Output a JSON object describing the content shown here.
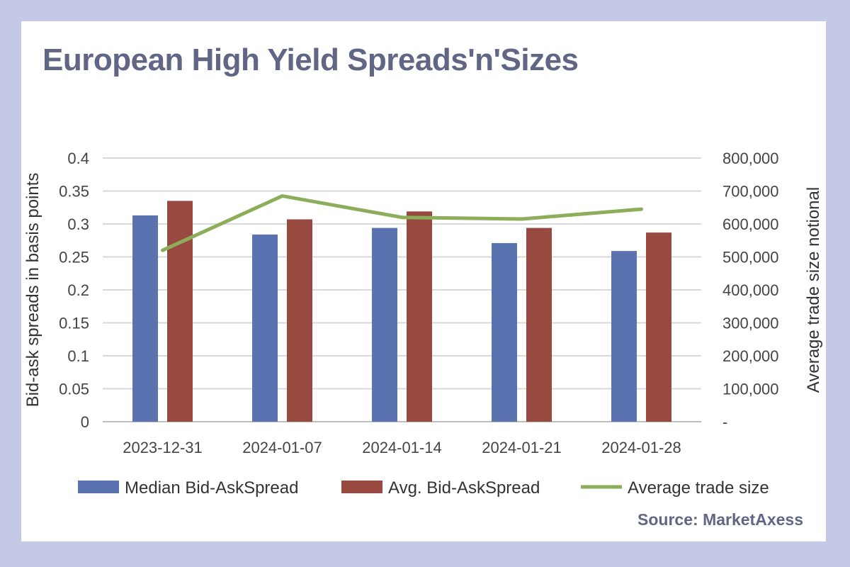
{
  "chart_data": {
    "type": "bar",
    "title": "European High Yield Spreads'n'Sizes",
    "categories": [
      "2023-12-31",
      "2024-01-07",
      "2024-01-14",
      "2024-01-21",
      "2024-01-28"
    ],
    "series": [
      {
        "name": "Median Bid-AskSpread",
        "type": "bar",
        "axis": "left",
        "color": "#5b72b0",
        "values": [
          0.313,
          0.284,
          0.294,
          0.271,
          0.259
        ]
      },
      {
        "name": "Avg. Bid-AskSpread",
        "type": "bar",
        "axis": "left",
        "color": "#984a40",
        "values": [
          0.335,
          0.307,
          0.319,
          0.294,
          0.287
        ]
      },
      {
        "name": "Average trade size",
        "type": "line",
        "axis": "right",
        "color": "#8cae5a",
        "values": [
          520000,
          685000,
          620000,
          615000,
          645000
        ]
      }
    ],
    "ylabel": "Bid-ask spreads in basis points",
    "ylim": [
      0,
      0.4
    ],
    "yticks": [
      "0",
      "0.05",
      "0.1",
      "0.15",
      "0.2",
      "0.25",
      "0.3",
      "0.35",
      "0.4"
    ],
    "y2label": "Average trade size notional",
    "y2lim": [
      0,
      800000
    ],
    "y2ticks": [
      "-",
      "100,000",
      "200,000",
      "300,000",
      "400,000",
      "500,000",
      "600,000",
      "700,000",
      "800,000"
    ],
    "grid": true,
    "legend_position": "bottom",
    "source": "Source: MarketAxess"
  }
}
